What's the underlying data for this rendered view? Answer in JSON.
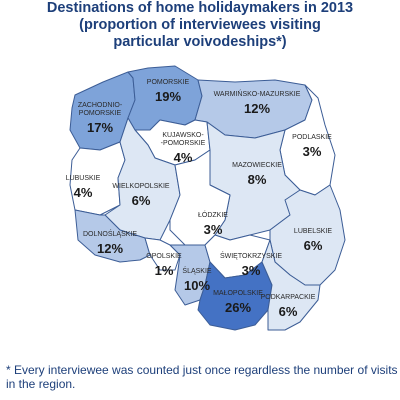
{
  "title": {
    "line1": "Destinations of home holidaymakers in 2013",
    "line2": "(proportion of interviewees visiting",
    "line3": "particular voivodeships*)"
  },
  "colors": {
    "very_high": "#4472c4",
    "high": "#7ea3d9",
    "medium": "#b5c9e8",
    "low": "#dde7f4",
    "very_low": "#ffffff",
    "border": "#3c5d96",
    "title_text": "#1d3f7a"
  },
  "regions": [
    {
      "id": "zachodniopomorskie",
      "name": [
        "ZACHODNIO-",
        "POMORSKIE"
      ],
      "value": "17%",
      "level": "high"
    },
    {
      "id": "pomorskie",
      "name": [
        "POMORSKIE"
      ],
      "value": "19%",
      "level": "high"
    },
    {
      "id": "warminsko-mazurskie",
      "name": [
        "WARMIŃSKO-MAZURSKIE"
      ],
      "value": "12%",
      "level": "medium"
    },
    {
      "id": "podlaskie",
      "name": [
        "PODLASKIE"
      ],
      "value": "3%",
      "level": "very_low"
    },
    {
      "id": "kujawsko-pomorskie",
      "name": [
        "KUJAWSKO-",
        "-POMORSKIE"
      ],
      "value": "4%",
      "level": "very_low"
    },
    {
      "id": "mazowieckie",
      "name": [
        "MAZOWIECKIE"
      ],
      "value": "8%",
      "level": "low"
    },
    {
      "id": "lubuskie",
      "name": [
        "LUBUSKIE"
      ],
      "value": "4%",
      "level": "very_low"
    },
    {
      "id": "wielkopolskie",
      "name": [
        "WIELKOPOLSKIE"
      ],
      "value": "6%",
      "level": "low"
    },
    {
      "id": "lodzkie",
      "name": [
        "ŁÓDZKIE"
      ],
      "value": "3%",
      "level": "very_low"
    },
    {
      "id": "lubelskie",
      "name": [
        "LUBELSKIE"
      ],
      "value": "6%",
      "level": "low"
    },
    {
      "id": "dolnoslaskie",
      "name": [
        "DOLNOŚLĄSKIE"
      ],
      "value": "12%",
      "level": "medium"
    },
    {
      "id": "opolskie",
      "name": [
        "OPOLSKIE"
      ],
      "value": "1%",
      "level": "very_low"
    },
    {
      "id": "slaskie",
      "name": [
        "ŚLĄSKIE"
      ],
      "value": "10%",
      "level": "medium"
    },
    {
      "id": "swietokrzyskie",
      "name": [
        "ŚWIĘTOKRZYSKIE"
      ],
      "value": "3%",
      "level": "very_low"
    },
    {
      "id": "malopolskie",
      "name": [
        "MAŁOPOLSKIE"
      ],
      "value": "26%",
      "level": "very_high"
    },
    {
      "id": "podkarpackie",
      "name": [
        "PODKARPACKIE"
      ],
      "value": "6%",
      "level": "low"
    }
  ],
  "footnote": "* Every interviewee was counted just once regardless the number of visits in the region."
}
